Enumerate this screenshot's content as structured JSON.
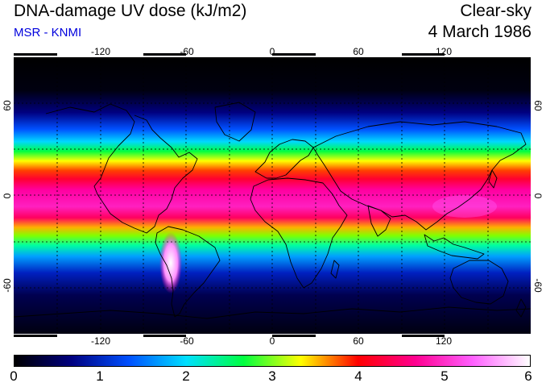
{
  "header": {
    "title": "DNA-damage UV dose (kJ/m2)",
    "source": "MSR - KNMI",
    "sky_condition": "Clear-sky",
    "date": "4 March 1986"
  },
  "map": {
    "longitude_ticks_top": [
      "-120",
      "-60",
      "0",
      "60",
      "120"
    ],
    "longitude_ticks_bottom": [
      "-120",
      "-60",
      "0",
      "60",
      "120"
    ],
    "latitude_ticks_left": [
      "60",
      "0",
      "-60"
    ],
    "latitude_ticks_right": [
      "60",
      "0",
      "-60"
    ],
    "longitude_range": [
      -180,
      180
    ],
    "latitude_range": [
      -90,
      90
    ]
  },
  "colorbar": {
    "labels": [
      "0",
      "1",
      "2",
      "3",
      "4",
      "5",
      "6"
    ],
    "colors": [
      "#000000",
      "#000080",
      "#0050ff",
      "#00e0ff",
      "#00ff40",
      "#ffff00",
      "#ff0000",
      "#ff0090",
      "#ff60ff",
      "#ffffff"
    ],
    "range": [
      0,
      6
    ]
  },
  "chart_data": {
    "type": "heatmap",
    "title": "DNA-damage UV dose (kJ/m2)",
    "units": "kJ/m2",
    "value_range": [
      0,
      6
    ],
    "latitude_profile": [
      {
        "lat": 90,
        "dose": 0.0
      },
      {
        "lat": 75,
        "dose": 0.1
      },
      {
        "lat": 60,
        "dose": 0.6
      },
      {
        "lat": 50,
        "dose": 1.2
      },
      {
        "lat": 40,
        "dose": 2.6
      },
      {
        "lat": 30,
        "dose": 3.6
      },
      {
        "lat": 20,
        "dose": 4.6
      },
      {
        "lat": 10,
        "dose": 5.1
      },
      {
        "lat": 0,
        "dose": 5.3
      },
      {
        "lat": -10,
        "dose": 5.2
      },
      {
        "lat": -20,
        "dose": 4.6
      },
      {
        "lat": -30,
        "dose": 3.6
      },
      {
        "lat": -40,
        "dose": 2.6
      },
      {
        "lat": -50,
        "dose": 1.6
      },
      {
        "lat": -60,
        "dose": 0.9
      },
      {
        "lat": -75,
        "dose": 0.3
      },
      {
        "lat": -90,
        "dose": 0.1
      }
    ]
  }
}
